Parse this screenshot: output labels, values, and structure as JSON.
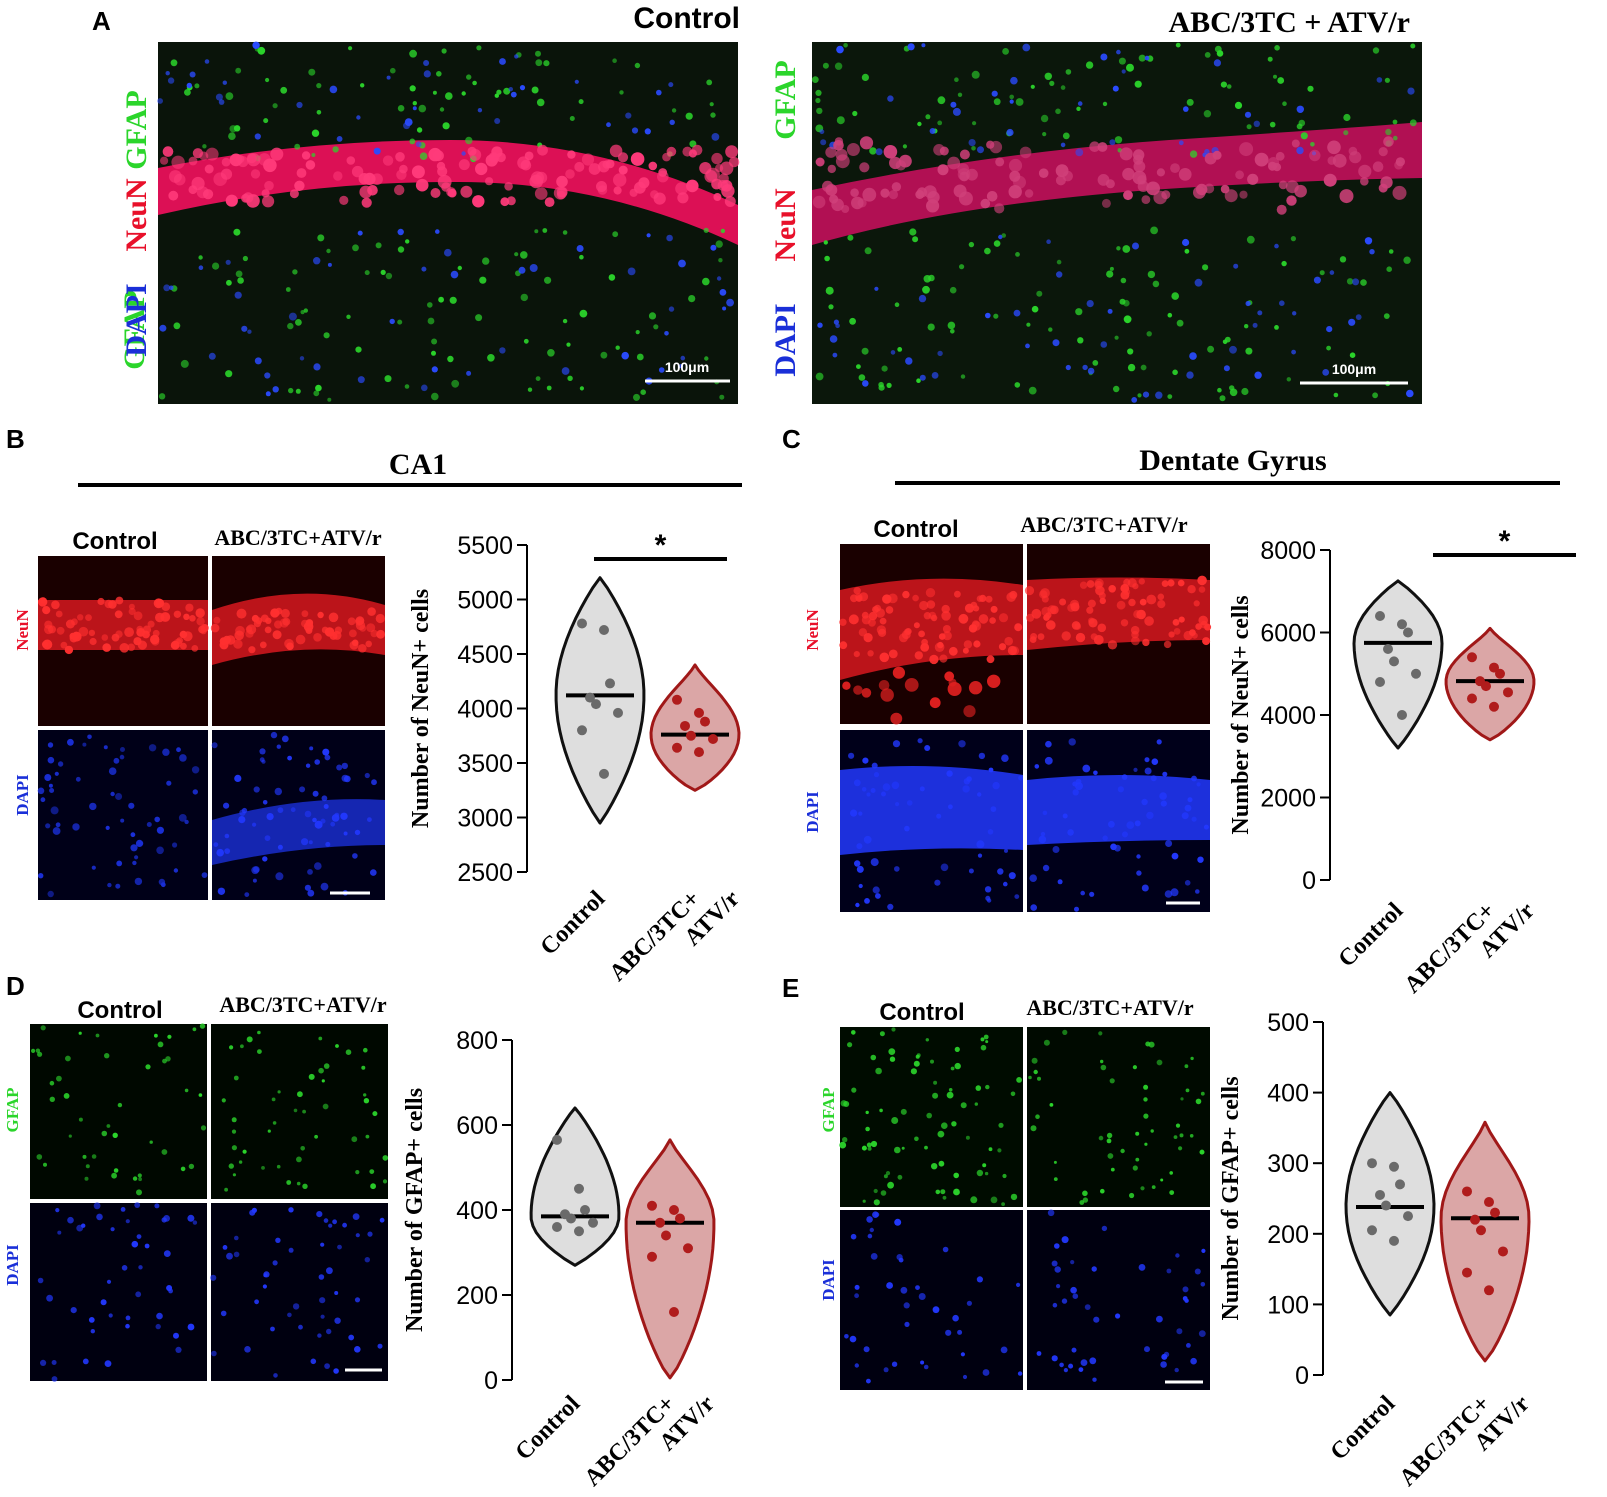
{
  "panel_a": {
    "letter": "A",
    "stain_labels": [
      "GFAP",
      "NeuN",
      "DAPI"
    ],
    "stain_colors": {
      "GFAP": "#2bd52b",
      "NeuN": "#e8102a",
      "DAPI": "#1a2fd8"
    },
    "images": [
      {
        "title": "Control",
        "scale_bar": "100μm"
      },
      {
        "title": "ABC/3TC + ATV/r",
        "scale_bar": "100μm"
      }
    ]
  },
  "panel_b": {
    "letter": "B",
    "region": "CA1",
    "col_labels": [
      "Control",
      "ABC/3TC+ATV/r"
    ],
    "row_labels": [
      "NeuN",
      "DAPI"
    ]
  },
  "panel_c": {
    "letter": "C",
    "region": "Dentate Gyrus",
    "col_labels": [
      "Control",
      "ABC/3TC+ATV/r"
    ],
    "row_labels": [
      "NeuN",
      "DAPI"
    ]
  },
  "panel_d": {
    "letter": "D",
    "col_labels": [
      "Control",
      "ABC/3TC+ATV/r"
    ],
    "row_labels": [
      "GFAP",
      "DAPI"
    ]
  },
  "panel_e": {
    "letter": "E",
    "col_labels": [
      "Control",
      "ABC/3TC+ATV/r"
    ],
    "row_labels": [
      "GFAP",
      "DAPI"
    ]
  },
  "colors": {
    "control_fill": "#dedede",
    "control_line": "#111111",
    "treat_fill": "#dba6a6",
    "treat_line": "#a01818",
    "control_dot": "#6a6a6a",
    "treat_dot": "#b01c1c"
  },
  "chart_data": [
    {
      "id": "B",
      "type": "violin",
      "ylabel": "Number of NeuN+ cells",
      "ylim": [
        2500,
        5500
      ],
      "yticks": [
        2500,
        3000,
        3500,
        4000,
        4500,
        5000,
        5500
      ],
      "categories": [
        "Control",
        "ABC/3TC+ ATV/r"
      ],
      "category_lines": [
        [
          "Control"
        ],
        [
          "ABC/3TC+",
          "ATV/r"
        ]
      ],
      "significance": "*",
      "series": [
        {
          "median": 4120,
          "min": 2950,
          "max": 5200,
          "points": [
            4780,
            4720,
            4230,
            4100,
            4040,
            3960,
            3800,
            3400
          ]
        },
        {
          "median": 3760,
          "min": 3250,
          "max": 4400,
          "points": [
            4080,
            3960,
            3880,
            3840,
            3750,
            3720,
            3640,
            3600
          ]
        }
      ]
    },
    {
      "id": "C",
      "type": "violin",
      "ylabel": "Number of NeuN+ cells",
      "ylim": [
        0,
        8000
      ],
      "yticks": [
        0,
        2000,
        4000,
        6000,
        8000
      ],
      "categories": [
        "Control",
        "ABC/3TC+ ATV/r"
      ],
      "category_lines": [
        [
          "Control"
        ],
        [
          "ABC/3TC+",
          "ATV/r"
        ]
      ],
      "significance": "*",
      "series": [
        {
          "median": 5750,
          "min": 3200,
          "max": 7250,
          "points": [
            6400,
            6200,
            6000,
            5600,
            5300,
            5000,
            4800,
            4000
          ]
        },
        {
          "median": 4820,
          "min": 3400,
          "max": 6100,
          "points": [
            5400,
            5150,
            5000,
            4820,
            4700,
            4550,
            4400,
            4200
          ]
        }
      ]
    },
    {
      "id": "D",
      "type": "violin",
      "ylabel": "Number of GFAP+  cells",
      "ylim": [
        0,
        800
      ],
      "yticks": [
        0,
        200,
        400,
        600,
        800
      ],
      "categories": [
        "Control",
        "ABC/3TC+ ATV/r"
      ],
      "category_lines": [
        [
          "Control"
        ],
        [
          "ABC/3TC+",
          "ATV/r"
        ]
      ],
      "significance": "",
      "series": [
        {
          "median": 385,
          "min": 270,
          "max": 640,
          "points": [
            565,
            450,
            400,
            390,
            380,
            370,
            360,
            350
          ]
        },
        {
          "median": 370,
          "min": 5,
          "max": 565,
          "points": [
            410,
            400,
            380,
            370,
            340,
            310,
            290,
            160
          ]
        }
      ]
    },
    {
      "id": "E",
      "type": "violin",
      "ylabel": "Number of GFAP+  cells",
      "ylim": [
        0,
        500
      ],
      "yticks": [
        0,
        100,
        200,
        300,
        400,
        500
      ],
      "categories": [
        "Control",
        "ABC/3TC+ ATV/r"
      ],
      "category_lines": [
        [
          "Control"
        ],
        [
          "ABC/3TC+",
          "ATV/r"
        ]
      ],
      "significance": "",
      "series": [
        {
          "median": 238,
          "min": 85,
          "max": 400,
          "points": [
            300,
            295,
            270,
            255,
            240,
            225,
            205,
            190
          ]
        },
        {
          "median": 222,
          "min": 20,
          "max": 358,
          "points": [
            260,
            245,
            230,
            220,
            205,
            175,
            145,
            120
          ]
        }
      ]
    }
  ]
}
